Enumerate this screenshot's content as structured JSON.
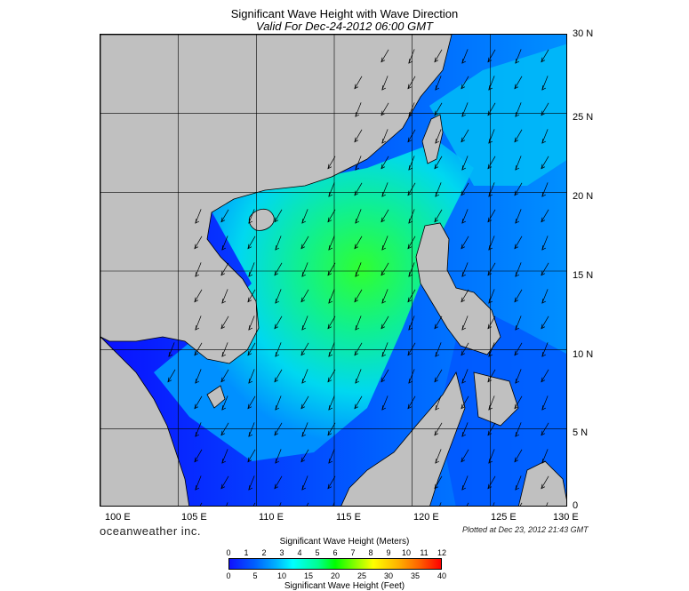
{
  "header": {
    "title": "Significant Wave Height with Wave Direction",
    "subtitle": "Valid For Dec-24-2012 06:00 GMT"
  },
  "map": {
    "lat_labels": [
      "30 N",
      "25 N",
      "20 N",
      "15 N",
      "10 N",
      "5 N",
      "0"
    ],
    "lon_labels": [
      "100 E",
      "105 E",
      "110 E",
      "115 E",
      "120 E",
      "125 E",
      "130 E"
    ],
    "colors": {
      "land": "#c0c0c0",
      "deep_water": "#0a10ff",
      "mid_water": "#00b8ff",
      "peak_water": "#30ff30",
      "grid": "#000000"
    },
    "arrow_icon": "wave-direction-arrow-icon"
  },
  "footer": {
    "brand": "oceanweather inc.",
    "plotted": "Plotted at Dec 23, 2012 21:43 GMT"
  },
  "colorbar": {
    "meters_title": "Significant Wave Height (Meters)",
    "meters_ticks": [
      "0",
      "1",
      "2",
      "3",
      "4",
      "5",
      "6",
      "7",
      "8",
      "9",
      "10",
      "11",
      "12"
    ],
    "feet_title": "Significant Wave Height (Feet)",
    "feet_ticks": [
      "0",
      "5",
      "10",
      "15",
      "20",
      "25",
      "30",
      "35",
      "40"
    ]
  }
}
